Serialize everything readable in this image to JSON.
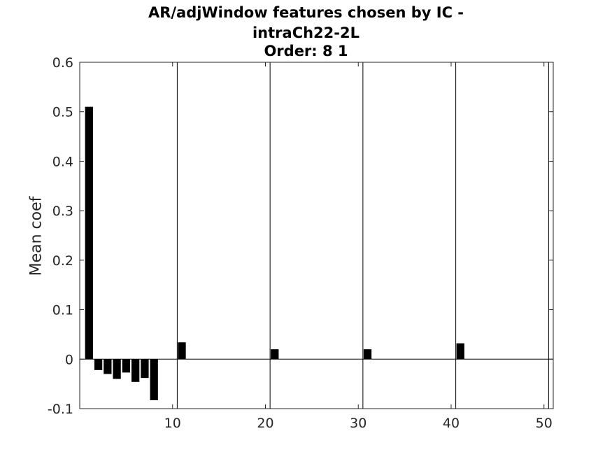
{
  "chart_data": {
    "type": "bar",
    "title_lines": [
      "AR/adjWindow features chosen by IC -",
      "intraCh22-2L",
      "Order: 8 1"
    ],
    "xlabel": "",
    "ylabel": "Mean coef",
    "xlim": [
      0,
      51
    ],
    "ylim": [
      -0.1,
      0.6
    ],
    "xticks": [
      10,
      20,
      30,
      40,
      50
    ],
    "yticks": [
      -0.1,
      0,
      0.1,
      0.2,
      0.3,
      0.4,
      0.5,
      0.6
    ],
    "ytick_labels": [
      "-0.1",
      "0",
      "0.1",
      "0.2",
      "0.3",
      "0.4",
      "0.5",
      "0.6"
    ],
    "separators": [
      10.5,
      20.5,
      30.5,
      40.5,
      50.5
    ],
    "x": [
      1,
      2,
      3,
      4,
      5,
      6,
      7,
      8,
      11,
      21,
      31,
      41
    ],
    "values": [
      0.51,
      -0.022,
      -0.03,
      -0.04,
      -0.027,
      -0.046,
      -0.038,
      -0.083,
      0.034,
      0.02,
      0.02,
      0.032
    ],
    "bar_color": "#000000",
    "grid": false
  }
}
